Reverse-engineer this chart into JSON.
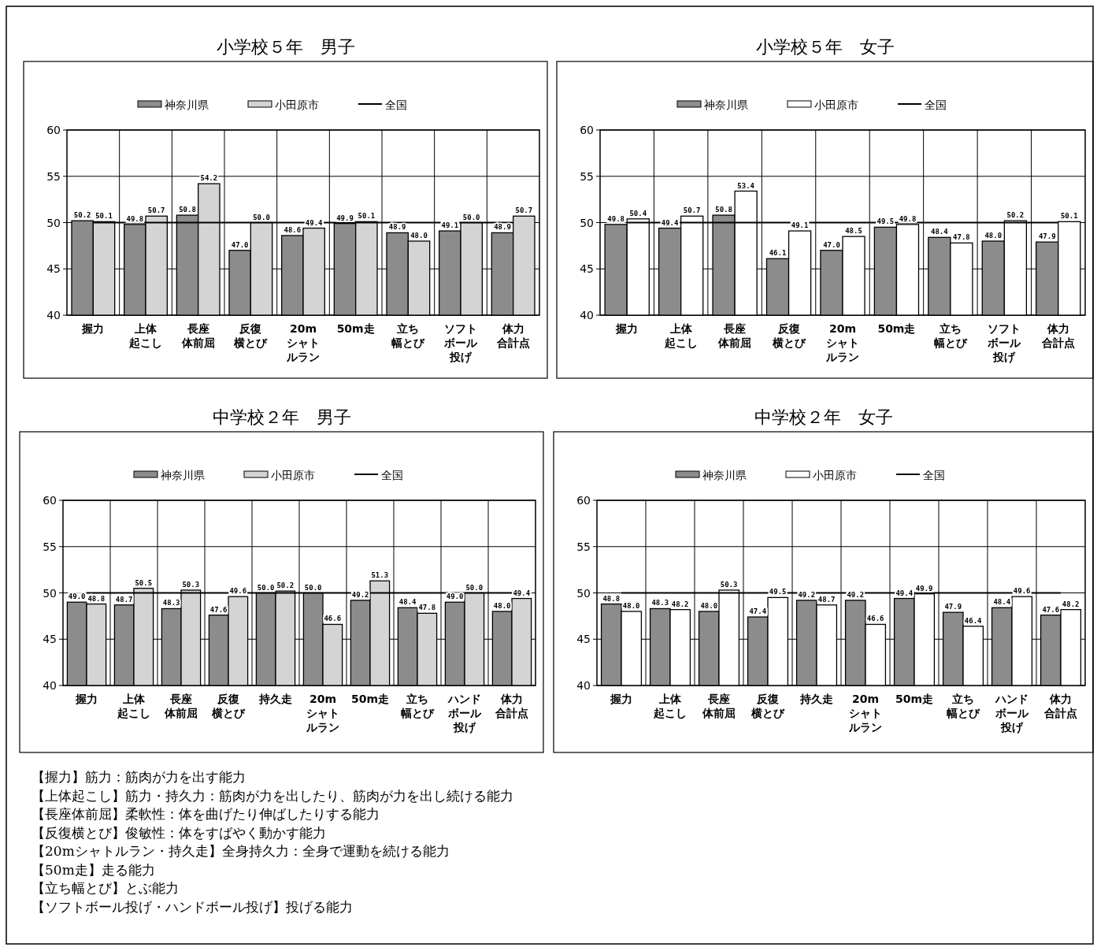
{
  "chart_data": [
    {
      "type": "bar",
      "title": "小学校５年　男子",
      "categories": [
        "握力",
        "上体起こし",
        "長座体前屈",
        "反復横とび",
        "20mシャトルラン",
        "50m走",
        "立ち幅とび",
        "ソフトボール投げ",
        "体力合計点"
      ],
      "series": [
        {
          "name": "神奈川県",
          "color": "#8c8c8c",
          "values": [
            50.2,
            49.8,
            50.8,
            47.0,
            48.6,
            49.9,
            48.9,
            49.1,
            48.9
          ],
          "value_labels": [
            "50.2",
            "49.8",
            "50.8",
            "47.0",
            "48.6",
            "49.9",
            "48.9",
            "49.1",
            "48.9"
          ]
        },
        {
          "name": "小田原市",
          "color": "#d4d4d4",
          "values": [
            50.1,
            50.7,
            54.2,
            50.0,
            49.4,
            50.1,
            48.0,
            50.0,
            50.7
          ],
          "value_labels": [
            "50.1",
            "50.7",
            "54.2",
            "50.0",
            "49.4",
            "50.1",
            "48.0",
            "50.0",
            "50.7"
          ]
        },
        {
          "name": "全国",
          "type": "line",
          "color": "#000000",
          "values": [
            50,
            50,
            50,
            50,
            50,
            50,
            50,
            50,
            50
          ]
        }
      ],
      "ylim": [
        40,
        60
      ],
      "yticks": [
        40,
        45,
        50,
        55,
        60
      ],
      "grid": true,
      "legend": "top"
    },
    {
      "type": "bar",
      "title": "小学校５年　女子",
      "categories": [
        "握力",
        "上体起こし",
        "長座体前屈",
        "反復横とび",
        "20mシャトルラン",
        "50m走",
        "立ち幅とび",
        "ソフトボール投げ",
        "体力合計点"
      ],
      "series": [
        {
          "name": "神奈川県",
          "color": "#8c8c8c",
          "values": [
            49.8,
            49.4,
            50.8,
            46.1,
            47.0,
            49.5,
            48.4,
            48.0,
            47.9
          ],
          "value_labels": [
            "49.8",
            "49.4",
            "50.8",
            "46.1",
            "47.0",
            "49.5",
            "48.4",
            "48.0",
            "47.9"
          ]
        },
        {
          "name": "小田原市",
          "color": "#ffffff",
          "values": [
            50.4,
            50.7,
            53.4,
            49.1,
            48.5,
            49.8,
            47.8,
            50.2,
            50.1
          ],
          "value_labels": [
            "50.4",
            "50.7",
            "53.4",
            "49.1",
            "48.5",
            "49.8",
            "47.8",
            "50.2",
            "50.1"
          ]
        },
        {
          "name": "全国",
          "type": "line",
          "color": "#000000",
          "values": [
            50,
            50,
            50,
            50,
            50,
            50,
            50,
            50,
            50
          ]
        }
      ],
      "ylim": [
        40,
        60
      ],
      "yticks": [
        40,
        45,
        50,
        55,
        60
      ],
      "grid": true,
      "legend": "top"
    },
    {
      "type": "bar",
      "title": "中学校２年　男子",
      "categories": [
        "握力",
        "上体起こし",
        "長座体前屈",
        "反復横とび",
        "持久走",
        "20mシャトルラン",
        "50m走",
        "立ち幅とび",
        "ハンドボール投げ",
        "体力合計点"
      ],
      "series": [
        {
          "name": "神奈川県",
          "color": "#8c8c8c",
          "values": [
            49.0,
            48.7,
            48.3,
            47.6,
            50.0,
            50.0,
            49.2,
            48.4,
            49.0,
            48.0
          ],
          "value_labels": [
            "49.0",
            "48.7",
            "48.3",
            "47.6",
            "50.0",
            "50.0",
            "49.2",
            "48.4",
            "49.0",
            "48.0"
          ]
        },
        {
          "name": "小田原市",
          "color": "#d4d4d4",
          "values": [
            48.8,
            50.5,
            50.3,
            49.6,
            50.2,
            46.6,
            51.3,
            47.8,
            50.0,
            49.4
          ],
          "value_labels": [
            "48.8",
            "50.5",
            "50.3",
            "49.6",
            "50.2",
            "46.6",
            "51.3",
            "47.8",
            "50.0",
            "49.4"
          ]
        },
        {
          "name": "全国",
          "type": "line",
          "color": "#000000",
          "values": [
            50,
            50,
            50,
            50,
            50,
            50,
            50,
            50,
            50,
            50
          ]
        }
      ],
      "ylim": [
        40,
        60
      ],
      "yticks": [
        40,
        45,
        50,
        55,
        60
      ],
      "grid": true,
      "legend": "top"
    },
    {
      "type": "bar",
      "title": "中学校２年　女子",
      "categories": [
        "握力",
        "上体起こし",
        "長座体前屈",
        "反復横とび",
        "持久走",
        "20mシャトルラン",
        "50m走",
        "立ち幅とび",
        "ハンドボール投げ",
        "体力合計点"
      ],
      "series": [
        {
          "name": "神奈川県",
          "color": "#8c8c8c",
          "values": [
            48.8,
            48.3,
            48.0,
            47.4,
            49.2,
            49.2,
            49.4,
            47.9,
            48.4,
            47.6
          ],
          "value_labels": [
            "48.8",
            "48.3",
            "48.0",
            "47.4",
            "49.2",
            "49.2",
            "49.4",
            "47.9",
            "48.4",
            "47.6"
          ]
        },
        {
          "name": "小田原市",
          "color": "#ffffff",
          "values": [
            48.0,
            48.2,
            50.3,
            49.5,
            48.7,
            46.6,
            49.9,
            46.4,
            49.6,
            48.2
          ],
          "value_labels": [
            "48.0",
            "48.2",
            "50.3",
            "49.5",
            "48.7",
            "46.6",
            "49.9",
            "46.4",
            "49.6",
            "48.2"
          ]
        },
        {
          "name": "全国",
          "type": "line",
          "color": "#000000",
          "values": [
            50,
            50,
            50,
            50,
            50,
            50,
            50,
            50,
            50,
            50
          ]
        }
      ],
      "ylim": [
        40,
        60
      ],
      "yticks": [
        40,
        45,
        50,
        55,
        60
      ],
      "grid": true,
      "legend": "top",
      "annotations": [
        "【握力】筋力：筋肉が力を出す能力",
        "【上体起こし】筋力・持久力：筋肉が力を出したり、筋肉が力を出し続ける能力",
        "【長座体前屈】柔軟性：体を曲げたり伸ばしたりする能力",
        "【反復横とび】俊敏性：体をすばやく動かす能力",
        "【20mシャトルラン・持久走】全身持久力：全身で運動を続ける能力",
        "【50m走】走る能力",
        "【立ち幅とび】とぶ能力",
        "【ソフトボール投げ・ハンドボール投げ】投げる能力"
      ]
    }
  ]
}
